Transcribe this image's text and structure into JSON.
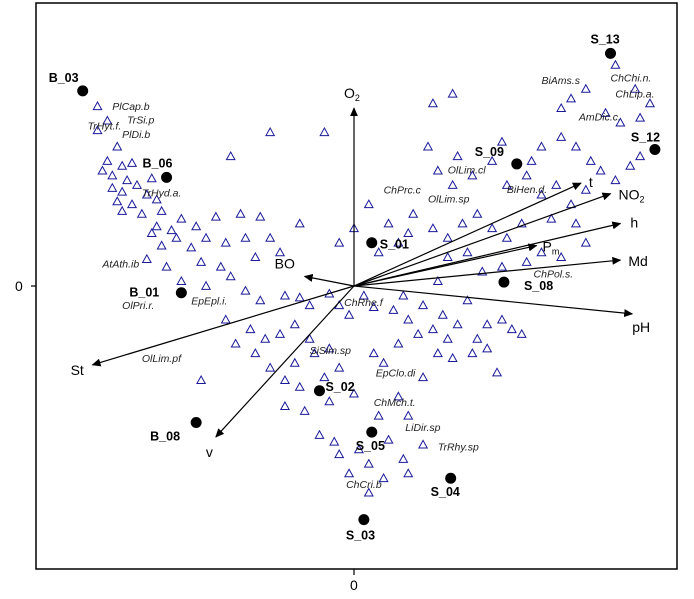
{
  "chart_data": {
    "type": "scatter",
    "subtype": "ordination-triplot",
    "xlim": [
      -3.2,
      3.2
    ],
    "ylim": [
      -2.9,
      2.9
    ],
    "x_tick_labels": [
      {
        "value": 0,
        "label": "0"
      }
    ],
    "y_tick_labels": [
      {
        "value": 0,
        "label": "0"
      }
    ],
    "colors": {
      "axis": "#000000",
      "arrow": "#000000",
      "site": "#000000",
      "species_marker": "#1a1a99",
      "text": "#000000"
    },
    "sites": [
      {
        "name": "B_03",
        "x": -2.75,
        "y": 2.03
      },
      {
        "name": "B_06",
        "x": -1.9,
        "y": 1.13
      },
      {
        "name": "B_01",
        "x": -1.75,
        "y": -0.07
      },
      {
        "name": "B_08",
        "x": -1.6,
        "y": -1.42
      },
      {
        "name": "S_13",
        "x": 2.6,
        "y": 2.42
      },
      {
        "name": "S_12",
        "x": 3.05,
        "y": 1.42
      },
      {
        "name": "S_09",
        "x": 1.65,
        "y": 1.27
      },
      {
        "name": "S_01",
        "x": 0.18,
        "y": 0.45
      },
      {
        "name": "S_08",
        "x": 1.52,
        "y": 0.04
      },
      {
        "name": "S_02",
        "x": -0.35,
        "y": -1.09
      },
      {
        "name": "S_05",
        "x": 0.18,
        "y": -1.52
      },
      {
        "name": "S_04",
        "x": 0.98,
        "y": -2.0
      },
      {
        "name": "S_03",
        "x": 0.1,
        "y": -2.43
      }
    ],
    "env_vectors": [
      {
        "name": "O",
        "subscript": "2",
        "x": 0.0,
        "y": 1.85
      },
      {
        "name": "t",
        "x": 2.3,
        "y": 1.07
      },
      {
        "name": "NO",
        "subscript": "2",
        "x": 2.6,
        "y": 0.96
      },
      {
        "name": "h",
        "x": 2.7,
        "y": 0.65
      },
      {
        "name": "P",
        "subscript": "m",
        "x": 1.85,
        "y": 0.42
      },
      {
        "name": "Md",
        "x": 2.7,
        "y": 0.27
      },
      {
        "name": "pH",
        "x": 2.82,
        "y": -0.29
      },
      {
        "name": "BO",
        "x": -0.5,
        "y": 0.1
      },
      {
        "name": "St",
        "x": -2.65,
        "y": -0.82
      },
      {
        "name": "v",
        "x": -1.4,
        "y": -1.57
      }
    ],
    "species_labels": [
      {
        "name": "PlCap.b",
        "x": -2.45,
        "y": 1.83
      },
      {
        "name": "TrSi.p",
        "x": -2.3,
        "y": 1.69
      },
      {
        "name": "TrHyt.f.",
        "x": -2.7,
        "y": 1.63
      },
      {
        "name": "PlDi.b",
        "x": -2.35,
        "y": 1.54
      },
      {
        "name": "TrHyd.a.",
        "x": -2.15,
        "y": 0.93
      },
      {
        "name": "AtAth.ib",
        "x": -2.55,
        "y": 0.19
      },
      {
        "name": "OlPri.r.",
        "x": -2.35,
        "y": -0.24
      },
      {
        "name": "EpEpl.i.",
        "x": -1.65,
        "y": -0.19
      },
      {
        "name": "OlLim.pf",
        "x": -2.15,
        "y": -0.79
      },
      {
        "name": "ChRhe.f",
        "x": -0.1,
        "y": -0.21
      },
      {
        "name": "SiSim.sp",
        "x": -0.45,
        "y": -0.71
      },
      {
        "name": "EpClo.di",
        "x": 0.22,
        "y": -0.94
      },
      {
        "name": "ChMch.t.",
        "x": 0.2,
        "y": -1.25
      },
      {
        "name": "LiDir.sp",
        "x": 0.52,
        "y": -1.51
      },
      {
        "name": "TrRhy.sp",
        "x": 0.85,
        "y": -1.71
      },
      {
        "name": "ChCri.b",
        "x": -0.08,
        "y": -2.1
      },
      {
        "name": "ChPrc.c",
        "x": 0.3,
        "y": 0.96
      },
      {
        "name": "OlLim.cl",
        "x": 0.95,
        "y": 1.17
      },
      {
        "name": "OlLim.sp",
        "x": 0.75,
        "y": 0.87
      },
      {
        "name": "BiHen.d.",
        "x": 1.55,
        "y": 0.97
      },
      {
        "name": "ChPol.s.",
        "x": 1.82,
        "y": 0.09
      },
      {
        "name": "BiAms.s",
        "x": 1.9,
        "y": 2.1
      },
      {
        "name": "ChChi.n.",
        "x": 2.6,
        "y": 2.13
      },
      {
        "name": "ChLip.a.",
        "x": 2.65,
        "y": 1.96
      },
      {
        "name": "AmDic.c.",
        "x": 2.28,
        "y": 1.72
      }
    ],
    "species_markers": [
      [
        -2.6,
        1.87
      ],
      [
        -2.5,
        1.72
      ],
      [
        -2.6,
        1.62
      ],
      [
        -2.4,
        1.45
      ],
      [
        -2.5,
        1.3
      ],
      [
        -2.35,
        1.25
      ],
      [
        -2.25,
        1.28
      ],
      [
        -2.55,
        1.2
      ],
      [
        -2.45,
        1.15
      ],
      [
        -2.3,
        1.1
      ],
      [
        -2.2,
        1.05
      ],
      [
        -2.05,
        1.12
      ],
      [
        -2.45,
        1.02
      ],
      [
        -2.35,
        0.98
      ],
      [
        -2.1,
        0.95
      ],
      [
        -2.4,
        0.88
      ],
      [
        -2.25,
        0.85
      ],
      [
        -2.0,
        0.9
      ],
      [
        -2.35,
        0.78
      ],
      [
        -2.15,
        0.75
      ],
      [
        -1.95,
        0.78
      ],
      [
        -1.75,
        0.7
      ],
      [
        -2.0,
        0.62
      ],
      [
        -1.85,
        0.58
      ],
      [
        -1.6,
        0.62
      ],
      [
        -1.4,
        0.72
      ],
      [
        -1.15,
        0.75
      ],
      [
        -0.95,
        0.72
      ],
      [
        -0.85,
        0.5
      ],
      [
        -0.55,
        0.65
      ],
      [
        -2.05,
        0.55
      ],
      [
        -1.8,
        0.5
      ],
      [
        -1.95,
        0.42
      ],
      [
        -1.65,
        0.4
      ],
      [
        -1.5,
        0.5
      ],
      [
        -1.3,
        0.45
      ],
      [
        -1.1,
        0.5
      ],
      [
        -2.1,
        0.28
      ],
      [
        -1.9,
        0.2
      ],
      [
        -1.55,
        0.25
      ],
      [
        -1.35,
        0.2
      ],
      [
        -1.25,
        0.1
      ],
      [
        -1.0,
        0.3
      ],
      [
        -0.75,
        0.35
      ],
      [
        -1.75,
        0.05
      ],
      [
        -1.5,
        0.0
      ],
      [
        -1.1,
        -0.05
      ],
      [
        -0.95,
        -0.15
      ],
      [
        -0.7,
        -0.1
      ],
      [
        -0.55,
        -0.12
      ],
      [
        -0.45,
        -0.2
      ],
      [
        -0.25,
        -0.08
      ],
      [
        -0.15,
        -0.2
      ],
      [
        -0.05,
        -0.3
      ],
      [
        0.1,
        -0.1
      ],
      [
        0.2,
        -0.22
      ],
      [
        -1.3,
        -0.35
      ],
      [
        -1.05,
        -0.45
      ],
      [
        -0.9,
        -0.55
      ],
      [
        -0.75,
        -0.5
      ],
      [
        -0.6,
        -0.4
      ],
      [
        -0.45,
        -0.55
      ],
      [
        -1.2,
        -0.6
      ],
      [
        -1.0,
        -0.7
      ],
      [
        -0.85,
        -0.85
      ],
      [
        -0.6,
        -0.8
      ],
      [
        -0.4,
        -0.7
      ],
      [
        -0.25,
        -0.65
      ],
      [
        -1.55,
        -0.98
      ],
      [
        -0.7,
        -0.98
      ],
      [
        -0.55,
        -1.05
      ],
      [
        -0.3,
        -0.95
      ],
      [
        -0.15,
        -0.85
      ],
      [
        -0.7,
        -1.25
      ],
      [
        -0.5,
        -1.3
      ],
      [
        -0.25,
        -1.2
      ],
      [
        0.2,
        -0.7
      ],
      [
        0.3,
        -0.8
      ],
      [
        0.45,
        -0.6
      ],
      [
        0.0,
        -1.12
      ],
      [
        0.25,
        -1.35
      ],
      [
        0.45,
        -1.15
      ],
      [
        0.55,
        -1.35
      ],
      [
        -0.35,
        -1.55
      ],
      [
        -0.2,
        -1.62
      ],
      [
        0.05,
        -1.7
      ],
      [
        0.35,
        -1.6
      ],
      [
        0.5,
        -1.8
      ],
      [
        0.15,
        -1.85
      ],
      [
        -0.15,
        -1.75
      ],
      [
        0.3,
        -2.0
      ],
      [
        0.55,
        -1.95
      ],
      [
        0.7,
        -1.65
      ],
      [
        -0.05,
        -1.95
      ],
      [
        0.15,
        -2.15
      ],
      [
        0.4,
        -0.25
      ],
      [
        0.55,
        -0.35
      ],
      [
        0.7,
        -0.2
      ],
      [
        0.9,
        -0.3
      ],
      [
        0.8,
        -0.45
      ],
      [
        1.05,
        -0.4
      ],
      [
        0.65,
        -0.5
      ],
      [
        0.95,
        -0.55
      ],
      [
        1.25,
        -0.55
      ],
      [
        1.35,
        -0.4
      ],
      [
        0.5,
        -0.1
      ],
      [
        0.85,
        0.05
      ],
      [
        1.15,
        -0.15
      ],
      [
        1.5,
        -0.35
      ],
      [
        1.7,
        -0.5
      ],
      [
        1.2,
        -0.7
      ],
      [
        1.0,
        -0.75
      ],
      [
        1.45,
        -0.9
      ],
      [
        0.7,
        -0.95
      ],
      [
        0.85,
        -0.7
      ],
      [
        1.35,
        -0.65
      ],
      [
        1.6,
        -0.45
      ],
      [
        0.25,
        0.35
      ],
      [
        0.45,
        0.45
      ],
      [
        0.55,
        0.55
      ],
      [
        0.35,
        0.65
      ],
      [
        0.6,
        0.75
      ],
      [
        0.15,
        0.85
      ],
      [
        0.0,
        0.6
      ],
      [
        -0.15,
        0.45
      ],
      [
        0.8,
        0.6
      ],
      [
        0.95,
        0.5
      ],
      [
        1.1,
        0.65
      ],
      [
        1.25,
        0.75
      ],
      [
        1.4,
        0.6
      ],
      [
        1.55,
        0.5
      ],
      [
        1.7,
        0.65
      ],
      [
        0.95,
        0.3
      ],
      [
        1.15,
        0.35
      ],
      [
        1.3,
        0.15
      ],
      [
        1.5,
        0.2
      ],
      [
        1.75,
        0.25
      ],
      [
        1.9,
        0.35
      ],
      [
        2.1,
        0.3
      ],
      [
        2.35,
        0.45
      ],
      [
        1.0,
        1.05
      ],
      [
        1.2,
        1.15
      ],
      [
        0.85,
        1.2
      ],
      [
        1.05,
        1.35
      ],
      [
        0.75,
        1.45
      ],
      [
        1.4,
        1.3
      ],
      [
        1.55,
        1.05
      ],
      [
        1.75,
        1.15
      ],
      [
        1.8,
        1.3
      ],
      [
        1.9,
        0.95
      ],
      [
        2.05,
        1.05
      ],
      [
        2.2,
        0.85
      ],
      [
        2.35,
        1.0
      ],
      [
        2.0,
        0.7
      ],
      [
        2.25,
        0.65
      ],
      [
        1.9,
        1.45
      ],
      [
        2.1,
        1.55
      ],
      [
        2.25,
        1.45
      ],
      [
        2.4,
        1.3
      ],
      [
        2.5,
        1.2
      ],
      [
        2.65,
        1.1
      ],
      [
        2.8,
        1.25
      ],
      [
        2.9,
        1.35
      ],
      [
        2.1,
        1.85
      ],
      [
        2.2,
        1.95
      ],
      [
        2.35,
        2.05
      ],
      [
        2.55,
        1.8
      ],
      [
        2.7,
        1.7
      ],
      [
        2.9,
        1.75
      ],
      [
        3.0,
        1.9
      ],
      [
        2.85,
        2.05
      ],
      [
        2.65,
        2.3
      ],
      [
        -0.3,
        1.6
      ],
      [
        0.8,
        1.9
      ],
      [
        1.0,
        2.0
      ],
      [
        -0.85,
        1.6
      ],
      [
        -1.25,
        1.35
      ],
      [
        1.5,
        1.5
      ]
    ]
  }
}
